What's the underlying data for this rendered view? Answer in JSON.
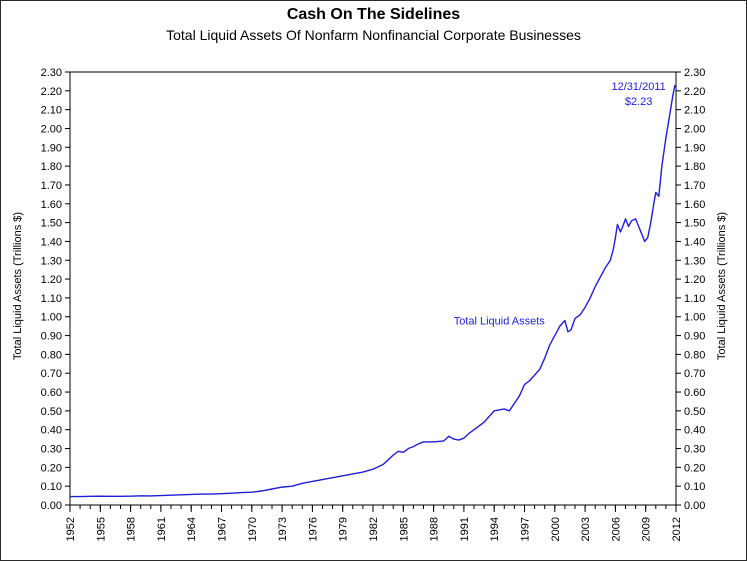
{
  "chart_data": {
    "type": "line",
    "title": "Cash On The Sidelines",
    "subtitle": "Total Liquid Assets Of Nonfarm Nonfinancial Corporate Businesses",
    "ylabel": "Total Liquid Assets (Trillions $)",
    "ylabel_right": "Total Liquid Assets (Trillions $)",
    "xlabel": "",
    "xlim": [
      1952,
      2012
    ],
    "ylim": [
      0,
      2.3
    ],
    "x_ticks": [
      "1952",
      "1955",
      "1958",
      "1961",
      "1964",
      "1967",
      "1970",
      "1973",
      "1976",
      "1979",
      "1982",
      "1985",
      "1988",
      "1991",
      "1994",
      "1997",
      "2000",
      "2003",
      "2006",
      "2009",
      "2012"
    ],
    "y_ticks": [
      "0.00",
      "0.10",
      "0.20",
      "0.30",
      "0.40",
      "0.50",
      "0.60",
      "0.70",
      "0.80",
      "0.90",
      "1.00",
      "1.10",
      "1.20",
      "1.30",
      "1.40",
      "1.50",
      "1.60",
      "1.70",
      "1.80",
      "1.90",
      "2.00",
      "2.10",
      "2.20",
      "2.30"
    ],
    "grid": false,
    "series": [
      {
        "name": "Total Liquid Assets",
        "color": "#1f1fd6",
        "points": [
          [
            1952,
            0.045
          ],
          [
            1953,
            0.045
          ],
          [
            1954,
            0.046
          ],
          [
            1955,
            0.047
          ],
          [
            1956,
            0.046
          ],
          [
            1957,
            0.046
          ],
          [
            1958,
            0.047
          ],
          [
            1959,
            0.049
          ],
          [
            1960,
            0.048
          ],
          [
            1961,
            0.05
          ],
          [
            1962,
            0.052
          ],
          [
            1963,
            0.054
          ],
          [
            1964,
            0.056
          ],
          [
            1965,
            0.058
          ],
          [
            1966,
            0.058
          ],
          [
            1967,
            0.06
          ],
          [
            1968,
            0.063
          ],
          [
            1969,
            0.066
          ],
          [
            1970,
            0.068
          ],
          [
            1971,
            0.075
          ],
          [
            1972,
            0.085
          ],
          [
            1973,
            0.095
          ],
          [
            1974,
            0.1
          ],
          [
            1975,
            0.115
          ],
          [
            1976,
            0.125
          ],
          [
            1977,
            0.135
          ],
          [
            1978,
            0.145
          ],
          [
            1979,
            0.155
          ],
          [
            1980,
            0.165
          ],
          [
            1981,
            0.175
          ],
          [
            1982,
            0.19
          ],
          [
            1983,
            0.215
          ],
          [
            1983.5,
            0.24
          ],
          [
            1984,
            0.265
          ],
          [
            1984.5,
            0.285
          ],
          [
            1985,
            0.28
          ],
          [
            1985.5,
            0.3
          ],
          [
            1986,
            0.31
          ],
          [
            1986.5,
            0.325
          ],
          [
            1987,
            0.335
          ],
          [
            1988,
            0.335
          ],
          [
            1989,
            0.34
          ],
          [
            1989.5,
            0.365
          ],
          [
            1990,
            0.35
          ],
          [
            1990.5,
            0.345
          ],
          [
            1991,
            0.355
          ],
          [
            1991.5,
            0.38
          ],
          [
            1992,
            0.4
          ],
          [
            1992.5,
            0.42
          ],
          [
            1993,
            0.44
          ],
          [
            1993.5,
            0.47
          ],
          [
            1994,
            0.5
          ],
          [
            1994.5,
            0.505
          ],
          [
            1995,
            0.51
          ],
          [
            1995.5,
            0.5
          ],
          [
            1996,
            0.54
          ],
          [
            1996.5,
            0.58
          ],
          [
            1997,
            0.64
          ],
          [
            1997.5,
            0.66
          ],
          [
            1998,
            0.69
          ],
          [
            1998.5,
            0.72
          ],
          [
            1999,
            0.78
          ],
          [
            1999.5,
            0.85
          ],
          [
            2000,
            0.9
          ],
          [
            2000.5,
            0.95
          ],
          [
            2001,
            0.98
          ],
          [
            2001.3,
            0.92
          ],
          [
            2001.6,
            0.93
          ],
          [
            2002,
            0.99
          ],
          [
            2002.5,
            1.01
          ],
          [
            2003,
            1.05
          ],
          [
            2003.5,
            1.1
          ],
          [
            2004,
            1.16
          ],
          [
            2004.5,
            1.21
          ],
          [
            2005,
            1.26
          ],
          [
            2005.5,
            1.3
          ],
          [
            2005.8,
            1.36
          ],
          [
            2006,
            1.42
          ],
          [
            2006.2,
            1.49
          ],
          [
            2006.5,
            1.45
          ],
          [
            2006.8,
            1.49
          ],
          [
            2007,
            1.52
          ],
          [
            2007.3,
            1.48
          ],
          [
            2007.6,
            1.51
          ],
          [
            2008,
            1.52
          ],
          [
            2008.3,
            1.48
          ],
          [
            2008.6,
            1.44
          ],
          [
            2008.9,
            1.4
          ],
          [
            2009.2,
            1.42
          ],
          [
            2009.5,
            1.5
          ],
          [
            2009.8,
            1.6
          ],
          [
            2010,
            1.66
          ],
          [
            2010.3,
            1.64
          ],
          [
            2010.6,
            1.8
          ],
          [
            2011,
            1.95
          ],
          [
            2011.4,
            2.08
          ],
          [
            2011.7,
            2.18
          ],
          [
            2011.9,
            2.23
          ]
        ]
      }
    ],
    "annotations": [
      {
        "id": "series-label",
        "text": "Total Liquid Assets",
        "x": 1994.5,
        "y": 0.96
      },
      {
        "id": "endpoint-date",
        "text": "12/31/2011",
        "x": 2008.3,
        "y": 2.205
      },
      {
        "id": "endpoint-value",
        "text": "$2.23",
        "x": 2008.3,
        "y": 2.125
      }
    ],
    "axis_color": "#000000",
    "annotation_color": "#1f1fd6"
  }
}
